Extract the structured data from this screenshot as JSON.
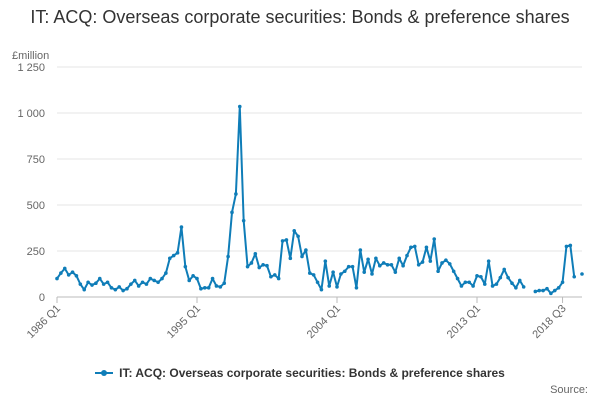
{
  "chart_data": {
    "type": "line",
    "title": "IT: ACQ: Overseas corporate securities: Bonds & preference shares",
    "ylabel": "£million",
    "ylim": [
      0,
      1250
    ],
    "yticks": [
      0,
      250,
      500,
      750,
      1000,
      1250
    ],
    "ytick_labels": [
      "0",
      "250",
      "500",
      "750",
      "1 000",
      "1 250"
    ],
    "start": "1986 Q1",
    "xtick_labels": [
      "1986 Q1",
      "1995 Q1",
      "2004 Q1",
      "2013 Q1",
      "2018 Q3"
    ],
    "grid": true,
    "legend": "bottom",
    "series": [
      {
        "name": "IT: ACQ: Overseas corporate securities: Bonds & preference shares",
        "color": "#0f7db8",
        "values": [
          100,
          130,
          155,
          120,
          135,
          115,
          70,
          40,
          80,
          65,
          75,
          100,
          70,
          80,
          50,
          40,
          55,
          35,
          45,
          70,
          90,
          60,
          80,
          70,
          100,
          90,
          80,
          100,
          130,
          210,
          225,
          240,
          380,
          165,
          90,
          115,
          100,
          45,
          50,
          50,
          100,
          60,
          55,
          75,
          220,
          460,
          560,
          1035,
          415,
          165,
          185,
          235,
          160,
          175,
          170,
          110,
          120,
          100,
          305,
          310,
          210,
          360,
          330,
          220,
          255,
          130,
          120,
          80,
          40,
          195,
          60,
          135,
          55,
          125,
          140,
          165,
          165,
          50,
          255,
          135,
          205,
          125,
          210,
          170,
          185,
          175,
          175,
          135,
          210,
          170,
          225,
          270,
          275,
          175,
          190,
          270,
          195,
          315,
          140,
          185,
          200,
          180,
          140,
          100,
          60,
          80,
          80,
          60,
          115,
          110,
          70,
          195,
          60,
          70,
          105,
          150,
          105,
          75,
          50,
          90,
          55,
          null,
          null,
          30,
          35,
          35,
          45,
          20,
          35,
          50,
          80,
          275,
          280,
          110,
          null,
          125
        ]
      }
    ]
  },
  "legend_label": "IT: ACQ: Overseas corporate securities: Bonds & preference shares",
  "source_label": "Source:"
}
